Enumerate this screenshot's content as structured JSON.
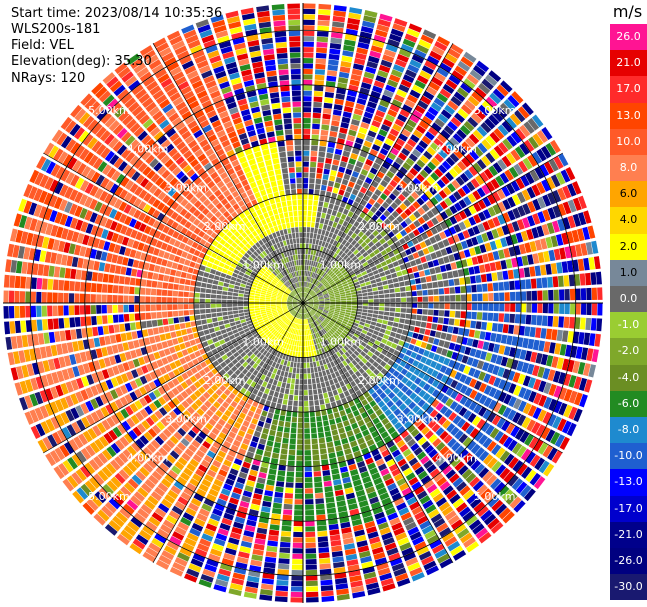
{
  "info": {
    "start_time": "Start time: 2023/08/14 10:35:36",
    "instrument": "WLS200s-181",
    "field": "Field: VEL",
    "elevation": "Elevation(deg): 35.30",
    "nrays": "NRays: 120"
  },
  "colorbar": {
    "unit": "m/s",
    "levels": [
      {
        "label": "26.0",
        "color": "#ff1493"
      },
      {
        "label": "21.0",
        "color": "#e60000"
      },
      {
        "label": "17.0",
        "color": "#ff2a2a"
      },
      {
        "label": "13.0",
        "color": "#ff4500"
      },
      {
        "label": "10.0",
        "color": "#ff5a28"
      },
      {
        "label": "8.0",
        "color": "#ff7f50"
      },
      {
        "label": "6.0",
        "color": "#ffa500"
      },
      {
        "label": "4.0",
        "color": "#ffd700"
      },
      {
        "label": "2.0",
        "color": "#ffff00"
      },
      {
        "label": "1.0",
        "color": "#778899"
      },
      {
        "label": "0.0",
        "color": "#696969"
      },
      {
        "label": "-1.0",
        "color": "#9acd32"
      },
      {
        "label": "-2.0",
        "color": "#7fa82a"
      },
      {
        "label": "-4.0",
        "color": "#6b8e23"
      },
      {
        "label": "-6.0",
        "color": "#228b22"
      },
      {
        "label": "-8.0",
        "color": "#1e8acf"
      },
      {
        "label": "-10.0",
        "color": "#1f5fd0"
      },
      {
        "label": "-13.0",
        "color": "#0000ff"
      },
      {
        "label": "-17.0",
        "color": "#0000cd"
      },
      {
        "label": "-21.0",
        "color": "#00008b"
      },
      {
        "label": "-26.0",
        "color": "#000080"
      },
      {
        "label": "-30.0",
        "color": "#191970"
      }
    ]
  },
  "chart_data": {
    "type": "heatmap",
    "projection": "polar PPI",
    "field": "VEL",
    "rays": 120,
    "range_rings_km": [
      1.0,
      2.0,
      3.0,
      4.0,
      5.0
    ],
    "range_ring_labels": [
      "1.00km",
      "2.00km",
      "3.00km",
      "4.00km",
      "5.00km"
    ],
    "spokes_deg": [
      0,
      30,
      60,
      90,
      120,
      150,
      180,
      210,
      240,
      270,
      300,
      330
    ],
    "regions": [
      {
        "range_km": [
          0.0,
          0.7
        ],
        "azimuth": "all",
        "velocity_mps": -1.0
      },
      {
        "range_km": [
          0.1,
          1.0
        ],
        "azimuth": "west/southwest",
        "velocity_mps": 2.0
      },
      {
        "range_km": [
          0.4,
          1.0
        ],
        "azimuth": "east",
        "velocity_mps": -1.0
      },
      {
        "range_km": [
          1.0,
          2.0
        ],
        "azimuth": "all",
        "velocity_mps": 0.0
      },
      {
        "range_km": [
          1.5,
          2.5
        ],
        "azimuth": "north/northwest",
        "velocity_mps": 2.0
      },
      {
        "range_km": [
          2.0,
          3.0
        ],
        "azimuth": "south",
        "velocity_mps": -4.0
      },
      {
        "range_km": [
          2.0,
          3.0
        ],
        "azimuth": "southeast",
        "velocity_mps": -8.0
      },
      {
        "range_km": [
          2.5,
          5.2
        ],
        "azimuth": "northwest",
        "velocity_mps": 10.0
      },
      {
        "range_km": [
          2.5,
          5.2
        ],
        "azimuth": "southwest",
        "velocity_mps": 8.0
      },
      {
        "range_km": [
          3.0,
          5.5
        ],
        "azimuth": "other",
        "velocity_mps": "noise (mixed)"
      }
    ]
  }
}
